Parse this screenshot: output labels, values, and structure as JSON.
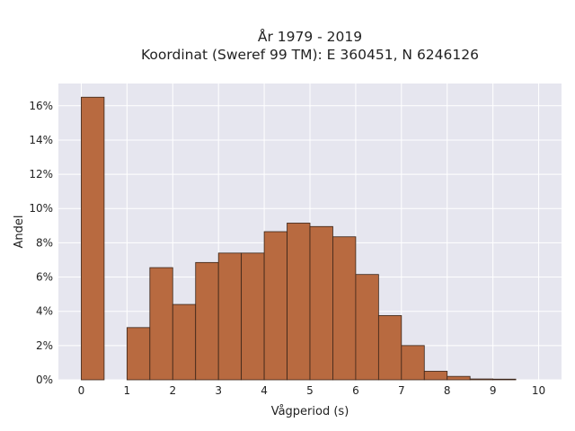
{
  "chart_data": {
    "type": "bar",
    "title": "År 1979 - 2019",
    "subtitle": "Koordinat (Sweref 99 TM): E 360451, N 6246126",
    "xlabel": "Vågperiod (s)",
    "ylabel": "Andel",
    "x_ticks": [
      "0",
      "1",
      "2",
      "3",
      "4",
      "5",
      "6",
      "7",
      "8",
      "9",
      "10"
    ],
    "y_ticks": [
      "0%",
      "2%",
      "4%",
      "6%",
      "8%",
      "10%",
      "12%",
      "14%",
      "16%"
    ],
    "xlim": [
      -0.5,
      10.5
    ],
    "ylim": [
      0,
      17.3
    ],
    "bin_width": 0.5,
    "bins": [
      0,
      0.5,
      1,
      1.5,
      2,
      2.5,
      3,
      3.5,
      4,
      4.5,
      5,
      5.5,
      6,
      6.5,
      7,
      7.5,
      8,
      8.5,
      9
    ],
    "values": [
      16.5,
      0,
      3.05,
      6.55,
      4.4,
      6.85,
      7.4,
      7.4,
      8.65,
      9.15,
      8.95,
      8.35,
      6.15,
      3.75,
      2.0,
      0.5,
      0.2,
      0.05,
      0.04
    ],
    "grid": true,
    "colors": {
      "bar_fill": "#b86a40",
      "bar_edge": "#3a2418",
      "plot_bg": "#e6e6ef",
      "grid": "#ffffff"
    }
  }
}
